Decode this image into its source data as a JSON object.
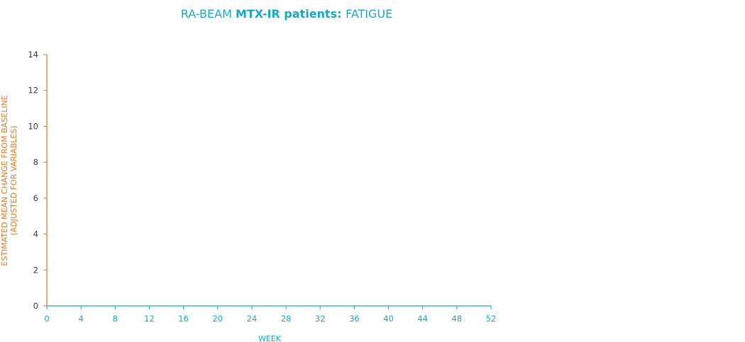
{
  "chart_data": {
    "type": "line",
    "title_parts": [
      {
        "text": "RA-BEAM ",
        "bold": false
      },
      {
        "text": "MTX-IR patients: ",
        "bold": true
      },
      {
        "text": "FATIGUE",
        "bold": false
      }
    ],
    "ylabel_line1": "ESTIMATED MEAN CHANGE FROM BASELINE",
    "ylabel_line2": "(ADJUSTED FOR VARIABLES)",
    "xlabel": "WEEK",
    "xlim": [
      0,
      52
    ],
    "ylim": [
      0,
      14
    ],
    "x_ticks": [
      "0",
      "4",
      "8",
      "12",
      "16",
      "20",
      "24",
      "28",
      "32",
      "36",
      "40",
      "44",
      "48",
      "52"
    ],
    "y_ticks": [
      "0",
      "2",
      "4",
      "6",
      "8",
      "10",
      "12",
      "14"
    ],
    "series": [
      {
        "x": [
          0,
          52
        ],
        "y": [
          0,
          0
        ]
      }
    ],
    "grid": false
  },
  "colors": {
    "title": "#1aa7c1",
    "y_axis": "#e07b1d",
    "x_axis": "#1aa7c1",
    "y_tick_text": "#3a3a3a",
    "series_line": "#1aa7c1"
  }
}
